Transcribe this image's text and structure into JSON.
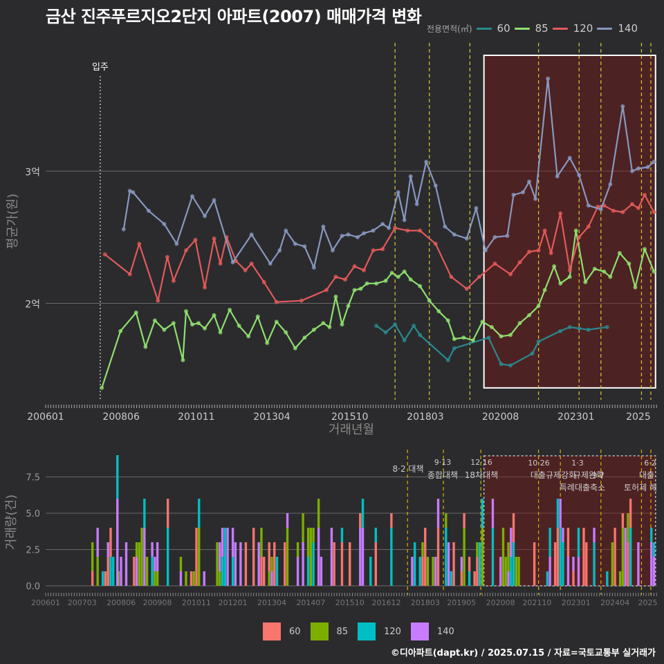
{
  "title": "금산 진주푸르지오2단지 아파트(2007) 매매가격 변화",
  "footer": "©디아파트(dapt.kr) / 2025.07.15 / 자료=국토교통부 실거래가",
  "legend_top": {
    "title": "전용면적(㎡)",
    "items": [
      {
        "label": "60",
        "color": "#2a8a8f"
      },
      {
        "label": "85",
        "color": "#90e070"
      },
      {
        "label": "120",
        "color": "#e35a5a"
      },
      {
        "label": "140",
        "color": "#8899c0"
      }
    ]
  },
  "legend_bottom": {
    "items": [
      {
        "label": "60",
        "color": "#f8766d"
      },
      {
        "label": "85",
        "color": "#7cae00"
      },
      {
        "label": "120",
        "color": "#00bfc4"
      },
      {
        "label": "140",
        "color": "#c77cff"
      }
    ]
  },
  "chart_data": [
    {
      "type": "line",
      "title": "금산 진주푸르지오2단지 아파트(2007) 매매가격 변화",
      "xlabel": "거래년월",
      "ylabel": "평균가(원)",
      "x_ticks": [
        "200601",
        "200806",
        "201011",
        "201304",
        "201510",
        "201803",
        "202008",
        "202301",
        "2025"
      ],
      "y_ticks": [
        {
          "value": 3.0,
          "label": "3억"
        },
        {
          "value": 2.0,
          "label": "2억"
        }
      ],
      "xlim": [
        2006.0,
        2025.6
      ],
      "ylim": [
        1.27,
        3.97
      ],
      "annotations": {
        "move_in": {
          "label": "입주",
          "x": 2007.75
        }
      },
      "series": [
        {
          "name": "60",
          "color": "#2a8a8f",
          "x": [
            2016.6,
            2016.9,
            2017.2,
            2017.5,
            2017.8,
            2018.0,
            2018.9,
            2019.1,
            2020.2,
            2020.6,
            2020.9,
            2021.6,
            2021.8,
            2022.5,
            2022.8,
            2023.1,
            2023.4,
            2024.0
          ],
          "y": [
            1.83,
            1.78,
            1.84,
            1.72,
            1.83,
            1.76,
            1.57,
            1.66,
            1.74,
            1.54,
            1.53,
            1.62,
            1.71,
            1.79,
            1.82,
            1.81,
            1.8,
            1.82
          ]
        },
        {
          "name": "85",
          "color": "#90e070",
          "x": [
            2007.8,
            2008.4,
            2008.9,
            2009.2,
            2009.5,
            2009.8,
            2010.1,
            2010.4,
            2010.5,
            2010.7,
            2010.9,
            2011.1,
            2011.4,
            2011.6,
            2011.9,
            2012.2,
            2012.5,
            2012.8,
            2013.1,
            2013.4,
            2013.7,
            2014.0,
            2014.3,
            2014.6,
            2014.9,
            2015.1,
            2015.3,
            2015.5,
            2015.7,
            2015.9,
            2016.1,
            2016.3,
            2016.6,
            2016.9,
            2017.1,
            2017.3,
            2017.5,
            2017.7,
            2018.0,
            2018.3,
            2018.6,
            2018.9,
            2019.1,
            2019.4,
            2019.7,
            2020.0,
            2020.3,
            2020.6,
            2020.9,
            2021.2,
            2021.5,
            2021.8,
            2022.0,
            2022.3,
            2022.5,
            2022.8,
            2023.0,
            2023.3,
            2023.6,
            2023.9,
            2024.1,
            2024.4,
            2024.7,
            2024.9,
            2025.2,
            2025.5
          ],
          "y": [
            1.36,
            1.79,
            1.93,
            1.67,
            1.87,
            1.8,
            1.85,
            1.57,
            1.94,
            1.84,
            1.85,
            1.81,
            1.91,
            1.78,
            1.95,
            1.83,
            1.75,
            1.9,
            1.7,
            1.86,
            1.78,
            1.66,
            1.74,
            1.8,
            1.85,
            1.82,
            2.05,
            1.84,
            1.98,
            2.1,
            2.11,
            2.15,
            2.15,
            2.17,
            2.23,
            2.2,
            2.24,
            2.18,
            2.13,
            2.02,
            1.94,
            1.87,
            1.73,
            1.74,
            1.72,
            1.86,
            1.82,
            1.75,
            1.76,
            1.85,
            1.91,
            1.98,
            2.1,
            2.28,
            2.15,
            2.2,
            2.55,
            2.16,
            2.26,
            2.24,
            2.2,
            2.38,
            2.3,
            2.12,
            2.41,
            2.24
          ]
        },
        {
          "name": "120",
          "color": "#e35a5a",
          "x": [
            2007.9,
            2008.7,
            2009.0,
            2009.6,
            2009.9,
            2010.1,
            2010.5,
            2010.8,
            2011.1,
            2011.4,
            2011.6,
            2011.8,
            2012.1,
            2012.4,
            2012.6,
            2013.0,
            2013.4,
            2014.2,
            2015.0,
            2015.3,
            2015.6,
            2015.9,
            2016.2,
            2016.5,
            2016.8,
            2017.2,
            2017.6,
            2018.0,
            2018.5,
            2019.0,
            2019.5,
            2019.9,
            2020.4,
            2020.9,
            2021.2,
            2021.5,
            2021.8,
            2022.0,
            2022.2,
            2022.5,
            2022.8,
            2023.1,
            2023.4,
            2023.7,
            2023.9,
            2024.2,
            2024.5,
            2024.8,
            2025.0,
            2025.2,
            2025.5
          ],
          "y": [
            2.37,
            2.22,
            2.45,
            2.02,
            2.35,
            2.17,
            2.4,
            2.48,
            2.12,
            2.49,
            2.3,
            2.5,
            2.32,
            2.25,
            2.3,
            2.16,
            2.01,
            2.02,
            2.1,
            2.2,
            2.18,
            2.28,
            2.25,
            2.4,
            2.41,
            2.57,
            2.55,
            2.55,
            2.45,
            2.2,
            2.11,
            2.2,
            2.3,
            2.22,
            2.31,
            2.39,
            2.4,
            2.55,
            2.38,
            2.68,
            2.25,
            2.5,
            2.58,
            2.73,
            2.74,
            2.7,
            2.69,
            2.75,
            2.72,
            2.82,
            2.69
          ]
        },
        {
          "name": "140",
          "color": "#8899c0",
          "x": [
            2008.5,
            2008.7,
            2008.8,
            2009.3,
            2009.8,
            2010.2,
            2010.7,
            2011.1,
            2011.4,
            2012.0,
            2012.6,
            2013.2,
            2013.5,
            2013.7,
            2014.0,
            2014.3,
            2014.6,
            2014.9,
            2015.2,
            2015.5,
            2015.7,
            2016.0,
            2016.2,
            2016.5,
            2016.8,
            2017.0,
            2017.3,
            2017.5,
            2017.7,
            2017.9,
            2018.2,
            2018.5,
            2018.8,
            2019.1,
            2019.5,
            2019.8,
            2020.1,
            2020.4,
            2020.8,
            2021.0,
            2021.3,
            2021.5,
            2021.7,
            2022.1,
            2022.4,
            2022.8,
            2023.1,
            2023.4,
            2023.8,
            2024.1,
            2024.5,
            2024.8,
            2025.0,
            2025.3,
            2025.5
          ],
          "y": [
            2.56,
            2.85,
            2.84,
            2.7,
            2.6,
            2.45,
            2.81,
            2.66,
            2.78,
            2.31,
            2.52,
            2.3,
            2.4,
            2.55,
            2.45,
            2.43,
            2.27,
            2.58,
            2.4,
            2.51,
            2.52,
            2.5,
            2.53,
            2.55,
            2.6,
            2.57,
            2.84,
            2.63,
            2.96,
            2.75,
            3.07,
            2.89,
            2.58,
            2.52,
            2.49,
            2.72,
            2.4,
            2.5,
            2.51,
            2.82,
            2.84,
            2.92,
            2.79,
            3.7,
            2.96,
            3.1,
            2.97,
            2.74,
            2.71,
            2.9,
            3.49,
            3.0,
            3.02,
            3.03,
            3.07
          ]
        }
      ],
      "policy_lines_x": [
        2017.2,
        2018.3,
        2019.6,
        2021.8,
        2023.1,
        2023.8,
        2025.1,
        2025.4
      ],
      "highlight_box_x": [
        2020.05,
        2025.55
      ]
    },
    {
      "type": "bar",
      "xlabel": "",
      "ylabel": "거래량(건)",
      "x_ticks": [
        "200601",
        "200703",
        "200806",
        "200908",
        "201011",
        "201201",
        "201304",
        "201407",
        "201510",
        "201612",
        "201803",
        "201905",
        "202008",
        "202110",
        "202301",
        "202404",
        "2025"
      ],
      "y_ticks": [
        "0.0",
        "2.5",
        "5.0",
        "7.5"
      ],
      "ylim": [
        0,
        9
      ],
      "series_names": [
        "60",
        "85",
        "120",
        "140"
      ],
      "policy_labels": [
        {
          "date": "8·2",
          "label": "8·2 대책"
        },
        {
          "date": "9·13",
          "label": "종합대책"
        },
        {
          "date": "12·16",
          "label": "18차대책"
        },
        {
          "date": "10·26",
          "label": "대출규제강화"
        },
        {
          "date": "1·3",
          "label": "규제완화"
        },
        {
          "date": "9·7",
          "label": "특례대출축소"
        },
        {
          "date": "",
          "label": "토허제 해"
        },
        {
          "date": "6·2",
          "label": "대출"
        }
      ]
    }
  ]
}
